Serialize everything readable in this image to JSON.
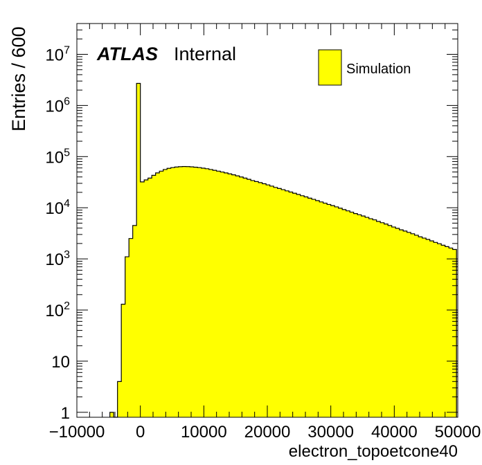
{
  "chart_data": {
    "type": "bar",
    "title": "",
    "xlabel": "electron_topoetcone40",
    "ylabel": "Entries / 600",
    "xlim": [
      -10000,
      50000
    ],
    "ylim": [
      0.8,
      40000000
    ],
    "log_y": true,
    "grid": false,
    "bin_width": 600,
    "x_ticks": [
      -10000,
      0,
      10000,
      20000,
      30000,
      40000,
      50000
    ],
    "x_tick_labels": [
      "−10000",
      "0",
      "10000",
      "20000",
      "30000",
      "40000",
      "50000"
    ],
    "y_ticks": [
      1,
      10,
      100,
      1000,
      10000,
      100000,
      1000000,
      10000000
    ],
    "y_tick_labels": [
      "1",
      "10",
      "10^2",
      "10^3",
      "10^4",
      "10^5",
      "10^6",
      "10^7"
    ],
    "legend": {
      "position": "top-right",
      "entries": [
        {
          "label": "Simulation",
          "color": "#ffff00"
        }
      ]
    },
    "annotation": {
      "bold_italic": "ATLAS",
      "normal": "Internal"
    },
    "fill_color": "#ffff00",
    "line_color": "#000000",
    "series": [
      {
        "name": "Simulation",
        "bins": [
          [
            -4800,
            1
          ],
          [
            -4200,
            0
          ],
          [
            -3600,
            4
          ],
          [
            -3000,
            130
          ],
          [
            -2400,
            1100
          ],
          [
            -1800,
            2500
          ],
          [
            -1200,
            4500
          ],
          [
            -600,
            2700000
          ],
          [
            0,
            32000
          ],
          [
            600,
            35000
          ],
          [
            1200,
            38000
          ],
          [
            1800,
            43000
          ],
          [
            2400,
            48000
          ],
          [
            3000,
            52000
          ],
          [
            3600,
            56000
          ],
          [
            4200,
            59000
          ],
          [
            4800,
            61000
          ],
          [
            5400,
            62500
          ],
          [
            6000,
            63500
          ],
          [
            6600,
            64000
          ],
          [
            7200,
            63800
          ],
          [
            7800,
            63000
          ],
          [
            8400,
            62000
          ],
          [
            9000,
            61000
          ],
          [
            9600,
            59500
          ],
          [
            10200,
            58000
          ],
          [
            10800,
            56000
          ],
          [
            11400,
            54000
          ],
          [
            12000,
            52000
          ],
          [
            12600,
            50000
          ],
          [
            13200,
            48000
          ],
          [
            13800,
            46000
          ],
          [
            14400,
            44000
          ],
          [
            15000,
            42000
          ],
          [
            15600,
            40000
          ],
          [
            16200,
            38000
          ],
          [
            16800,
            36000
          ],
          [
            17400,
            34000
          ],
          [
            18000,
            32500
          ],
          [
            18600,
            31000
          ],
          [
            19200,
            29500
          ],
          [
            19800,
            28000
          ],
          [
            20400,
            26500
          ],
          [
            21000,
            25000
          ],
          [
            21600,
            23800
          ],
          [
            22200,
            22600
          ],
          [
            22800,
            21400
          ],
          [
            23400,
            20300
          ],
          [
            24000,
            19200
          ],
          [
            24600,
            18200
          ],
          [
            25200,
            17200
          ],
          [
            25800,
            16300
          ],
          [
            26400,
            15400
          ],
          [
            27000,
            14600
          ],
          [
            27600,
            13800
          ],
          [
            28200,
            13000
          ],
          [
            28800,
            12300
          ],
          [
            29400,
            11600
          ],
          [
            30000,
            11000
          ],
          [
            30600,
            10400
          ],
          [
            31200,
            9800
          ],
          [
            31800,
            9200
          ],
          [
            32400,
            8700
          ],
          [
            33000,
            8200
          ],
          [
            33600,
            7700
          ],
          [
            34200,
            7300
          ],
          [
            34800,
            6900
          ],
          [
            35400,
            6500
          ],
          [
            36000,
            6100
          ],
          [
            36600,
            5800
          ],
          [
            37200,
            5400
          ],
          [
            37800,
            5100
          ],
          [
            38400,
            4800
          ],
          [
            39000,
            4500
          ],
          [
            39600,
            4200
          ],
          [
            40200,
            3950
          ],
          [
            40800,
            3700
          ],
          [
            41400,
            3500
          ],
          [
            42000,
            3300
          ],
          [
            42600,
            3100
          ],
          [
            43200,
            2900
          ],
          [
            43800,
            2700
          ],
          [
            44400,
            2550
          ],
          [
            45000,
            2400
          ],
          [
            45600,
            2250
          ],
          [
            46200,
            2100
          ],
          [
            46800,
            1980
          ],
          [
            47400,
            1850
          ],
          [
            48000,
            1740
          ],
          [
            48600,
            1630
          ],
          [
            49200,
            1530
          ]
        ]
      }
    ]
  }
}
